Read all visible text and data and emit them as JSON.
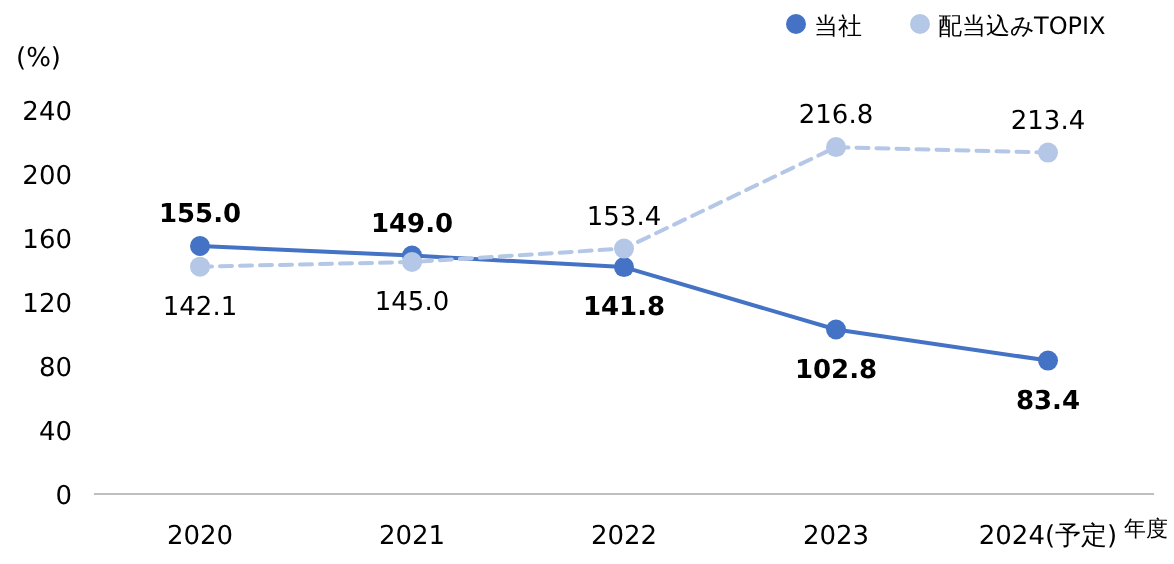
{
  "chart_data": {
    "type": "line",
    "ylabel": "(%)",
    "xlabel": "年度",
    "categories": [
      "2020",
      "2021",
      "2022",
      "2023",
      "2024(予定)"
    ],
    "ylim": [
      0,
      240
    ],
    "yticks": [
      0,
      40,
      80,
      120,
      160,
      200,
      240
    ],
    "grid": false,
    "legend": "top right",
    "marker": "circle",
    "series": [
      {
        "name": "当社",
        "color": "#4472c4",
        "line_style": "solid",
        "values": [
          155.0,
          149.0,
          141.8,
          102.8,
          83.4
        ],
        "value_labels": [
          "155.0",
          "149.0",
          "141.8",
          "102.8",
          "83.4"
        ]
      },
      {
        "name": "配当込みTOPIX",
        "color": "#b4c7e7",
        "line_style": "dashed",
        "values": [
          142.1,
          145.0,
          153.4,
          216.8,
          213.4
        ],
        "value_labels": [
          "142.1",
          "145.0",
          "153.4",
          "216.8",
          "213.4"
        ]
      }
    ]
  }
}
